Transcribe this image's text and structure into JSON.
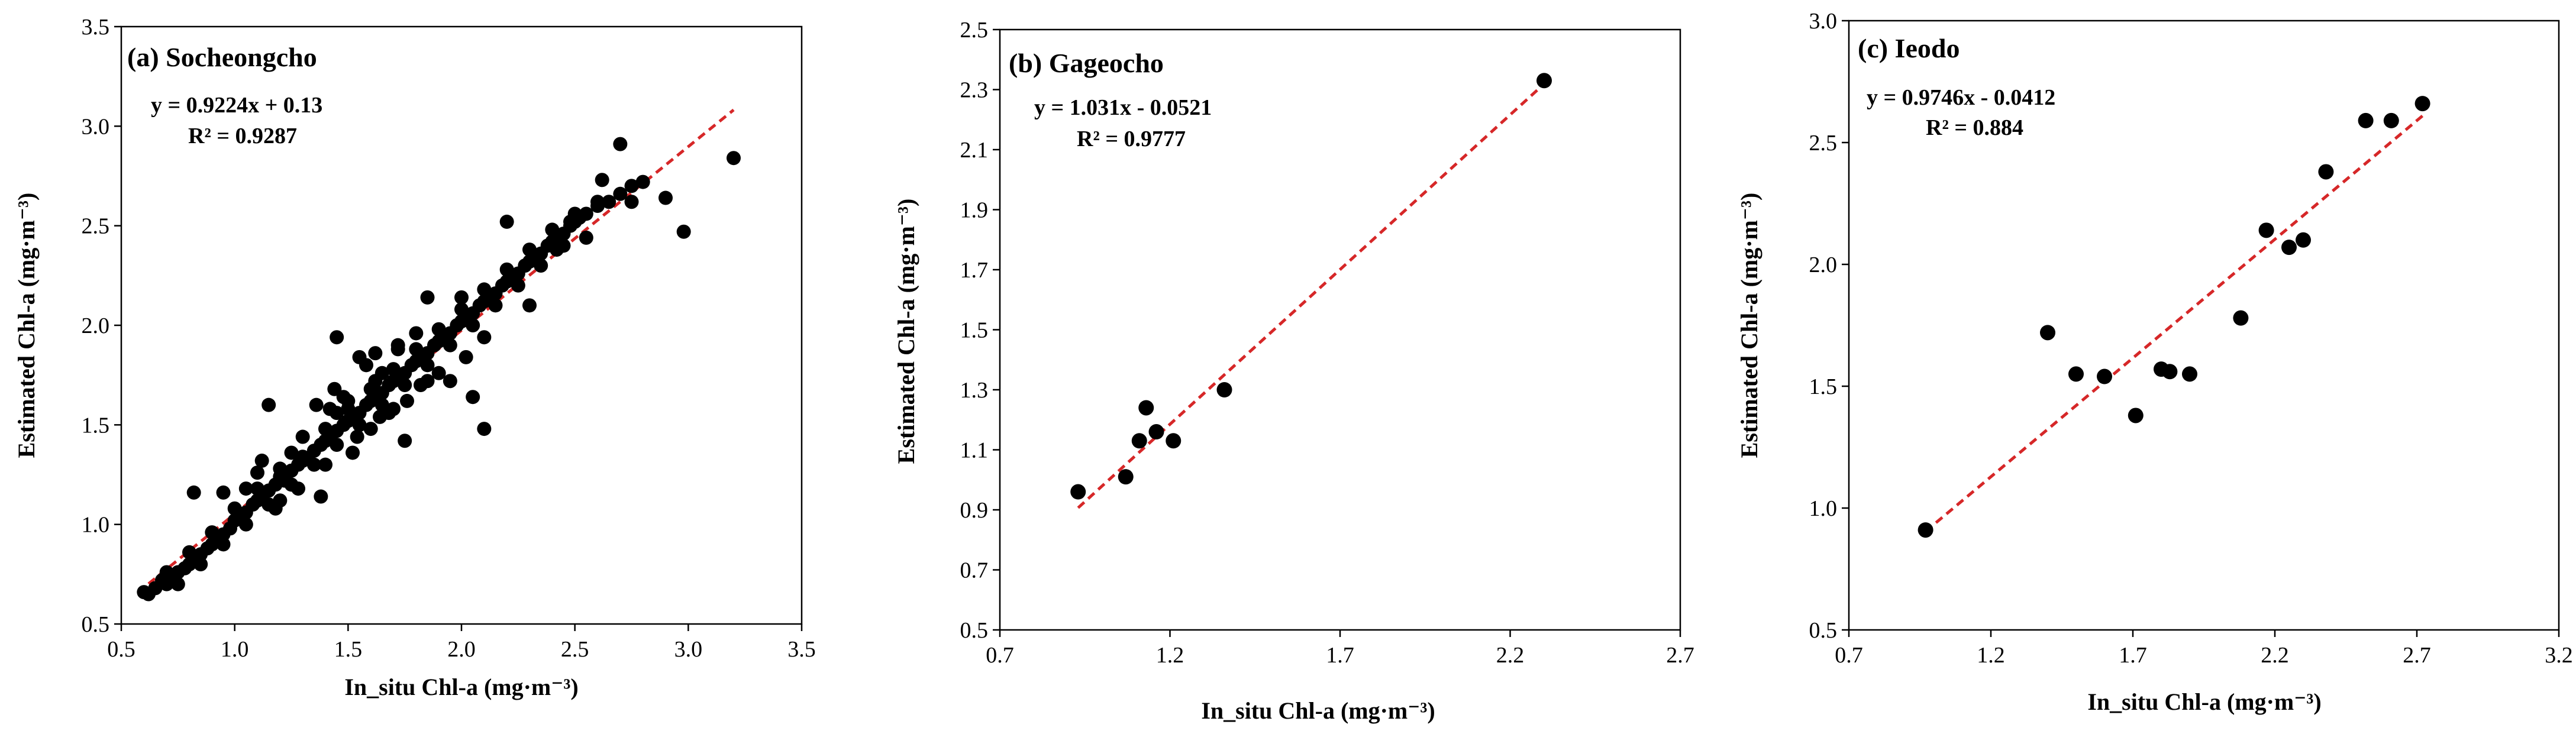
{
  "chart_data": [
    {
      "type": "scatter",
      "title": "(a) Socheongcho",
      "xlabel": "In_situ Chl-a (mg·m⁻³)",
      "ylabel": "Estimated Chl-a (mg·m⁻³)",
      "xlim": [
        0.5,
        3.5
      ],
      "ylim": [
        0.5,
        3.5
      ],
      "x_ticks": [
        0.5,
        1.0,
        1.5,
        2.0,
        2.5,
        3.0,
        3.5
      ],
      "y_ticks": [
        0.5,
        1.0,
        1.5,
        2.0,
        2.5,
        3.0,
        3.5
      ],
      "x_tick_labels": [
        "0.5",
        "1.0",
        "1.5",
        "2.0",
        "2.5",
        "3.0",
        "3.5"
      ],
      "y_tick_labels": [
        "0.5",
        "1.0",
        "1.5",
        "2.0",
        "2.5",
        "3.0",
        "3.5"
      ],
      "equation": "y = 0.9224x + 0.13",
      "r2": "R² = 0.9287",
      "fit": {
        "slope": 0.9224,
        "intercept": 0.13,
        "x_range": [
          0.62,
          3.2
        ]
      },
      "colors": {
        "points": "#000000",
        "fit": "#d62728"
      },
      "x": [
        0.6,
        0.62,
        0.65,
        0.68,
        0.7,
        0.72,
        0.75,
        0.78,
        0.8,
        0.82,
        0.85,
        0.88,
        0.9,
        0.92,
        0.95,
        0.98,
        1.0,
        1.02,
        1.05,
        1.08,
        1.1,
        1.12,
        1.15,
        1.18,
        1.2,
        1.22,
        1.25,
        1.28,
        1.3,
        1.32,
        1.35,
        1.38,
        1.4,
        1.42,
        1.45,
        1.48,
        1.5,
        1.52,
        1.55,
        1.58,
        1.6,
        1.62,
        1.65,
        1.68,
        1.7,
        1.72,
        1.75,
        1.78,
        1.8,
        1.82,
        1.85,
        1.88,
        1.9,
        1.92,
        1.95,
        1.98,
        2.0,
        2.02,
        2.05,
        2.08,
        2.1,
        2.12,
        2.15,
        2.18,
        2.2,
        2.22,
        2.25,
        2.28,
        2.3,
        2.32,
        2.35,
        2.38,
        2.4,
        2.42,
        2.45,
        2.48,
        2.5,
        2.52,
        2.55,
        2.6,
        2.65,
        2.7,
        2.75,
        2.8,
        0.7,
        0.8,
        0.9,
        1.0,
        1.1,
        1.2,
        1.3,
        1.4,
        1.5,
        1.6,
        1.7,
        1.8,
        1.9,
        2.0,
        2.1,
        2.2,
        2.3,
        2.4,
        2.5,
        0.75,
        0.85,
        0.95,
        1.05,
        1.15,
        1.25,
        1.35,
        1.45,
        1.55,
        1.65,
        1.75,
        1.85,
        1.95,
        2.05,
        2.15,
        2.25,
        2.35,
        2.45,
        1.1,
        1.3,
        1.5,
        1.7,
        1.9,
        2.1,
        1.2,
        1.4,
        1.6,
        1.8,
        2.0,
        1.25,
        1.45,
        1.65,
        1.85,
        0.82,
        1.12,
        1.42,
        1.72,
        2.02,
        1.52,
        1.62,
        1.44,
        1.36,
        1.58,
        1.68,
        1.76,
        1.48,
        1.54,
        1.64,
        2.7,
        2.75,
        2.9,
        2.98,
        3.2,
        2.1,
        2.05,
        1.95,
        1.45,
        1.55,
        1.75,
        1.85,
        1.15,
        1.05,
        0.95,
        2.3,
        2.55,
        2.6,
        2.2,
        1.38,
        1.28,
        1.18,
        1.62,
        1.72,
        1.82,
        2.42,
        2.48,
        2.62
      ],
      "y": [
        0.66,
        0.65,
        0.68,
        0.72,
        0.7,
        0.74,
        0.76,
        0.78,
        0.8,
        0.82,
        0.85,
        0.88,
        0.9,
        0.93,
        0.95,
        0.98,
        1.02,
        1.04,
        1.06,
        1.1,
        1.12,
        1.14,
        1.17,
        1.2,
        1.24,
        1.22,
        1.27,
        1.3,
        1.32,
        1.33,
        1.37,
        1.4,
        1.42,
        1.44,
        1.47,
        1.5,
        1.52,
        1.54,
        1.56,
        1.6,
        1.62,
        1.64,
        1.66,
        1.7,
        1.72,
        1.74,
        1.76,
        1.8,
        1.82,
        1.84,
        1.86,
        1.9,
        1.92,
        1.93,
        1.96,
        2.0,
        2.02,
        2.04,
        2.06,
        2.1,
        2.12,
        2.14,
        2.16,
        2.2,
        2.22,
        2.24,
        2.26,
        2.3,
        2.32,
        2.33,
        2.36,
        2.4,
        2.42,
        2.44,
        2.46,
        2.5,
        2.52,
        2.54,
        2.56,
        2.6,
        2.62,
        2.66,
        2.7,
        2.72,
        0.76,
        0.86,
        0.96,
        1.08,
        1.18,
        1.28,
        1.34,
        1.48,
        1.58,
        1.68,
        1.78,
        1.88,
        1.98,
        2.08,
        2.18,
        2.28,
        2.38,
        2.48,
        2.56,
        0.7,
        0.8,
        0.9,
        1.0,
        1.1,
        1.2,
        1.3,
        1.4,
        1.5,
        1.6,
        1.7,
        1.8,
        1.9,
        2.0,
        2.1,
        2.2,
        2.3,
        2.4,
        1.26,
        1.44,
        1.62,
        1.58,
        1.76,
        1.94,
        1.12,
        1.3,
        1.48,
        1.96,
        2.14,
        1.36,
        1.56,
        1.76,
        1.72,
        1.16,
        1.32,
        1.58,
        1.88,
        1.84,
        1.36,
        1.72,
        1.68,
        1.6,
        1.8,
        1.56,
        1.62,
        1.64,
        1.44,
        1.54,
        2.91,
        2.62,
        2.64,
        2.47,
        2.84,
        1.48,
        1.64,
        1.72,
        1.94,
        1.84,
        1.42,
        2.14,
        1.6,
        1.18,
        1.16,
        2.1,
        2.44,
        2.62,
        2.52,
        1.14,
        1.18,
        1.08,
        1.86,
        1.9,
        1.7,
        2.38,
        2.52,
        2.73
      ]
    },
    {
      "type": "scatter",
      "title": "(b) Gageocho",
      "xlabel": "In_situ Chl-a (mg·m⁻³)",
      "ylabel": "Estimated Chl-a (mg·m⁻³)",
      "xlim": [
        0.7,
        2.7
      ],
      "ylim": [
        0.5,
        2.5
      ],
      "x_ticks": [
        0.7,
        1.2,
        1.7,
        2.2,
        2.7
      ],
      "y_ticks": [
        0.5,
        0.7,
        0.9,
        1.1,
        1.3,
        1.5,
        1.7,
        1.9,
        2.1,
        2.3,
        2.5
      ],
      "x_tick_labels": [
        "0.7",
        "1.2",
        "1.7",
        "2.2",
        "2.7"
      ],
      "y_tick_labels": [
        "0.5",
        "0.7",
        "0.9",
        "1.1",
        "1.3",
        "1.5",
        "1.7",
        "1.9",
        "2.1",
        "2.3",
        "2.5"
      ],
      "equation": "y = 1.031x - 0.0521",
      "r2": "R² = 0.9777",
      "fit": {
        "slope": 1.031,
        "intercept": -0.0521,
        "x_range": [
          0.93,
          2.3
        ]
      },
      "colors": {
        "points": "#000000",
        "fit": "#d62728"
      },
      "x": [
        0.93,
        1.07,
        1.11,
        1.13,
        1.16,
        1.21,
        1.36,
        2.3
      ],
      "y": [
        0.96,
        1.01,
        1.13,
        1.24,
        1.16,
        1.13,
        1.3,
        2.33
      ]
    },
    {
      "type": "scatter",
      "title": "(c) Ieodo",
      "xlabel": "In_situ Chl-a (mg·m⁻³)",
      "ylabel": "Estimated Chl-a (mg·m⁻³)",
      "xlim": [
        0.7,
        3.2
      ],
      "ylim": [
        0.5,
        3.0
      ],
      "x_ticks": [
        0.7,
        1.2,
        1.7,
        2.2,
        2.7,
        3.2
      ],
      "y_ticks": [
        0.5,
        1.0,
        1.5,
        2.0,
        2.5,
        3.0
      ],
      "x_tick_labels": [
        "0.7",
        "1.2",
        "1.7",
        "2.2",
        "2.7",
        "3.2"
      ],
      "y_tick_labels": [
        "0.5",
        "1.0",
        "1.5",
        "2.0",
        "2.5",
        "3.0"
      ],
      "equation": "y = 0.9746x - 0.0412",
      "r2": "R² = 0.884",
      "fit": {
        "slope": 0.9746,
        "intercept": -0.0412,
        "x_range": [
          0.97,
          2.72
        ]
      },
      "colors": {
        "points": "#000000",
        "fit": "#d62728"
      },
      "x": [
        0.97,
        1.4,
        1.5,
        1.6,
        1.71,
        1.8,
        1.83,
        1.9,
        2.08,
        2.17,
        2.25,
        2.3,
        2.38,
        2.52,
        2.61,
        2.72
      ],
      "y": [
        0.91,
        1.72,
        1.55,
        1.54,
        1.38,
        1.57,
        1.56,
        1.55,
        1.78,
        2.14,
        2.07,
        2.1,
        2.38,
        2.59,
        2.59,
        2.66
      ]
    }
  ]
}
